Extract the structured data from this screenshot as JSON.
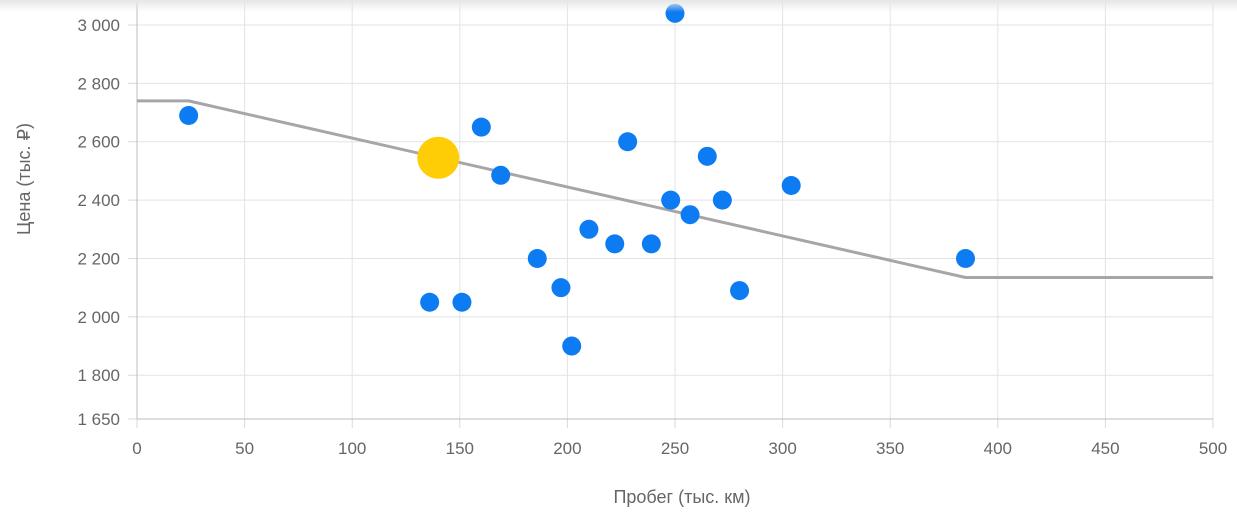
{
  "chart_data": {
    "type": "scatter",
    "xlabel": "Пробег (тыс. км)",
    "ylabel": "Цена (тыс. ₽)",
    "xlim": [
      0,
      500
    ],
    "ylim": [
      1650,
      3000
    ],
    "x_ticks": [
      0,
      50,
      100,
      150,
      200,
      250,
      300,
      350,
      400,
      450,
      500
    ],
    "x_tick_labels": [
      "0",
      "50",
      "100",
      "150",
      "200",
      "250",
      "300",
      "350",
      "400",
      "450",
      "500"
    ],
    "y_ticks": [
      1650,
      1800,
      2000,
      2200,
      2400,
      2600,
      2800,
      3000
    ],
    "y_tick_labels": [
      "1 650",
      "1 800",
      "2 000",
      "2 200",
      "2 400",
      "2 600",
      "2 800",
      "3 000"
    ],
    "grid": true,
    "series": [
      {
        "color": "#0d7cf2",
        "type": "scatter",
        "points": [
          {
            "x": 24,
            "y": 2690
          },
          {
            "x": 136,
            "y": 2050
          },
          {
            "x": 151,
            "y": 2050
          },
          {
            "x": 160,
            "y": 2650
          },
          {
            "x": 169,
            "y": 2485
          },
          {
            "x": 186,
            "y": 2200
          },
          {
            "x": 197,
            "y": 2100
          },
          {
            "x": 202,
            "y": 1900
          },
          {
            "x": 210,
            "y": 2300
          },
          {
            "x": 222,
            "y": 2250
          },
          {
            "x": 228,
            "y": 2600
          },
          {
            "x": 239,
            "y": 2250
          },
          {
            "x": 248,
            "y": 2400
          },
          {
            "x": 250,
            "y": 3040
          },
          {
            "x": 257,
            "y": 2350
          },
          {
            "x": 265,
            "y": 2550
          },
          {
            "x": 272,
            "y": 2400
          },
          {
            "x": 280,
            "y": 2090
          },
          {
            "x": 304,
            "y": 2450
          },
          {
            "x": 385,
            "y": 2200
          }
        ]
      },
      {
        "color": "#ffcd05",
        "type": "scatter",
        "highlight": true,
        "points": [
          {
            "x": 140,
            "y": 2545
          }
        ]
      },
      {
        "color": "#a6a6a6",
        "type": "line",
        "points": [
          {
            "x": 0,
            "y": 2740
          },
          {
            "x": 24,
            "y": 2740
          },
          {
            "x": 385,
            "y": 2135
          },
          {
            "x": 500,
            "y": 2135
          }
        ]
      }
    ]
  }
}
